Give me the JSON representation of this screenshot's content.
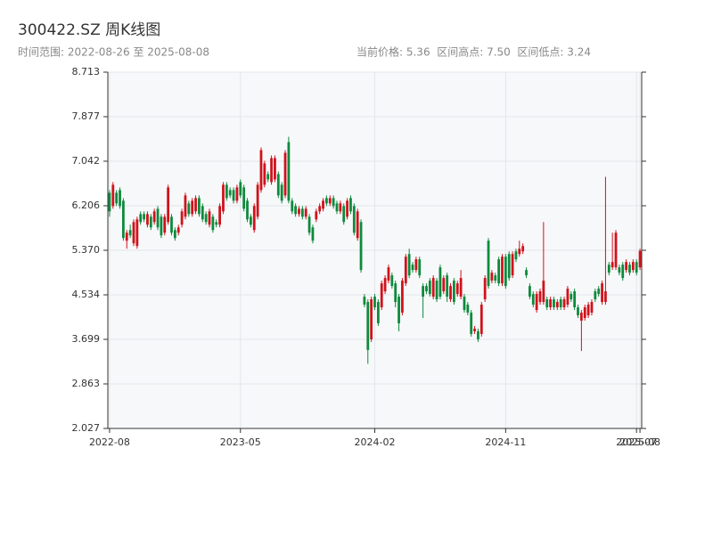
{
  "chart_data": {
    "type": "candlestick",
    "title": "300422.SZ 周K线图",
    "subtitle": [
      "时间范围: 2022-08-26 至 2025-08-08",
      "当前价格: 5.36  区间高点: 7.50  区间低点: 3.24"
    ],
    "up_color": "#d0121b",
    "down_color": "#0d8a3c",
    "grid": true,
    "ylim": [
      2.027,
      8.713
    ],
    "yticks": [
      2.027,
      2.863,
      3.699,
      4.534,
      {
        "value": 5.37,
        "label": "5.370"
      },
      6.206,
      7.042,
      7.877,
      8.713
    ],
    "categories": [
      "2022-08",
      null,
      null,
      null,
      null,
      null,
      null,
      null,
      null,
      null,
      null,
      null,
      null,
      null,
      null,
      null,
      null,
      null,
      null,
      null,
      null,
      null,
      null,
      null,
      null,
      null,
      null,
      null,
      null,
      null,
      null,
      null,
      null,
      null,
      null,
      null,
      null,
      null,
      "2023-05",
      null,
      null,
      null,
      null,
      null,
      null,
      null,
      null,
      null,
      null,
      null,
      null,
      null,
      null,
      null,
      null,
      null,
      null,
      null,
      null,
      null,
      null,
      null,
      null,
      null,
      null,
      null,
      null,
      null,
      null,
      null,
      null,
      null,
      null,
      null,
      null,
      null,
      null,
      "2024-02",
      null,
      null,
      null,
      null,
      null,
      null,
      null,
      null,
      null,
      null,
      null,
      null,
      null,
      null,
      null,
      null,
      null,
      null,
      null,
      null,
      null,
      null,
      null,
      null,
      null,
      null,
      null,
      null,
      null,
      null,
      null,
      null,
      null,
      null,
      null,
      null,
      null,
      "2024-11",
      null,
      null,
      null,
      null,
      null,
      null,
      null,
      null,
      null,
      null,
      null,
      null,
      null,
      null,
      null,
      null,
      null,
      null,
      null,
      null,
      null,
      null,
      null,
      null,
      null,
      null,
      null,
      null,
      null,
      null,
      null,
      null,
      null,
      null,
      null,
      null,
      null,
      "2025-07",
      "2025-08"
    ],
    "ohlc": [
      [
        6.45,
        6.5,
        6.0,
        6.1
      ],
      [
        6.2,
        6.65,
        6.15,
        6.6
      ],
      [
        6.45,
        6.5,
        6.2,
        6.25
      ],
      [
        6.5,
        6.55,
        6.15,
        6.2
      ],
      [
        6.3,
        6.35,
        5.55,
        5.6
      ],
      [
        5.55,
        5.75,
        5.4,
        5.7
      ],
      [
        5.75,
        5.85,
        5.6,
        5.65
      ],
      [
        5.5,
        5.95,
        5.45,
        5.9
      ],
      [
        5.45,
        6.0,
        5.4,
        5.95
      ],
      [
        6.05,
        6.1,
        5.85,
        5.9
      ],
      [
        6.05,
        6.1,
        5.9,
        5.95
      ],
      [
        5.85,
        6.1,
        5.8,
        6.05
      ],
      [
        6.0,
        6.05,
        5.75,
        5.8
      ],
      [
        5.9,
        6.15,
        5.85,
        6.1
      ],
      [
        6.15,
        6.2,
        5.75,
        5.8
      ],
      [
        6.0,
        6.05,
        5.6,
        5.65
      ],
      [
        5.7,
        6.05,
        5.65,
        6.0
      ],
      [
        5.9,
        6.6,
        5.85,
        6.55
      ],
      [
        6.0,
        6.05,
        5.65,
        5.7
      ],
      [
        5.75,
        5.8,
        5.55,
        5.6
      ],
      [
        5.7,
        5.85,
        5.65,
        5.8
      ],
      [
        5.85,
        6.15,
        5.8,
        6.1
      ],
      [
        6.0,
        6.45,
        5.95,
        6.4
      ],
      [
        6.25,
        6.3,
        6.0,
        6.05
      ],
      [
        6.05,
        6.35,
        6.0,
        6.3
      ],
      [
        6.1,
        6.4,
        6.05,
        6.35
      ],
      [
        6.35,
        6.4,
        6.0,
        6.05
      ],
      [
        6.2,
        6.25,
        5.9,
        5.95
      ],
      [
        6.05,
        6.1,
        5.85,
        5.9
      ],
      [
        5.85,
        6.15,
        5.8,
        6.1
      ],
      [
        6.0,
        6.05,
        5.7,
        5.75
      ],
      [
        5.9,
        5.95,
        5.8,
        5.85
      ],
      [
        5.85,
        6.25,
        5.8,
        6.2
      ],
      [
        6.1,
        6.65,
        6.05,
        6.6
      ],
      [
        6.6,
        6.65,
        6.3,
        6.35
      ],
      [
        6.5,
        6.55,
        6.35,
        6.4
      ],
      [
        6.5,
        6.55,
        6.25,
        6.3
      ],
      [
        6.3,
        6.6,
        6.25,
        6.55
      ],
      [
        6.65,
        6.7,
        6.35,
        6.4
      ],
      [
        6.55,
        6.6,
        6.1,
        6.15
      ],
      [
        6.3,
        6.35,
        5.9,
        5.95
      ],
      [
        6.0,
        6.05,
        5.8,
        5.85
      ],
      [
        5.75,
        6.25,
        5.7,
        6.2
      ],
      [
        6.0,
        6.65,
        5.95,
        6.6
      ],
      [
        6.5,
        7.3,
        6.45,
        7.25
      ],
      [
        6.6,
        7.05,
        6.55,
        7.0
      ],
      [
        6.8,
        6.85,
        6.65,
        6.7
      ],
      [
        6.65,
        7.15,
        6.6,
        7.1
      ],
      [
        6.7,
        7.15,
        6.65,
        7.1
      ],
      [
        6.8,
        6.85,
        6.35,
        6.4
      ],
      [
        6.6,
        6.65,
        6.25,
        6.3
      ],
      [
        6.4,
        7.25,
        6.35,
        7.2
      ],
      [
        7.4,
        7.5,
        6.25,
        6.3
      ],
      [
        6.3,
        6.35,
        6.05,
        6.1
      ],
      [
        6.2,
        6.25,
        6.0,
        6.05
      ],
      [
        6.05,
        6.2,
        6.0,
        6.15
      ],
      [
        6.15,
        6.2,
        5.95,
        6.0
      ],
      [
        6.0,
        6.2,
        5.95,
        6.15
      ],
      [
        6.0,
        6.05,
        5.65,
        5.7
      ],
      [
        5.8,
        5.85,
        5.5,
        5.55
      ],
      [
        5.95,
        6.15,
        5.9,
        6.1
      ],
      [
        6.1,
        6.25,
        6.05,
        6.2
      ],
      [
        6.15,
        6.35,
        6.1,
        6.3
      ],
      [
        6.35,
        6.4,
        6.2,
        6.25
      ],
      [
        6.25,
        6.4,
        6.2,
        6.35
      ],
      [
        6.35,
        6.4,
        6.15,
        6.2
      ],
      [
        6.25,
        6.3,
        6.05,
        6.1
      ],
      [
        6.1,
        6.3,
        6.05,
        6.25
      ],
      [
        6.2,
        6.25,
        5.85,
        5.9
      ],
      [
        6.0,
        6.35,
        5.95,
        6.3
      ],
      [
        6.35,
        6.4,
        6.05,
        6.1
      ],
      [
        6.2,
        6.25,
        5.65,
        5.7
      ],
      [
        5.6,
        6.15,
        5.55,
        6.1
      ],
      [
        5.9,
        5.95,
        4.95,
        5.0
      ],
      [
        4.5,
        4.55,
        4.3,
        4.35
      ],
      [
        4.4,
        4.45,
        3.24,
        3.5
      ],
      [
        3.7,
        4.5,
        3.65,
        4.45
      ],
      [
        4.5,
        4.55,
        4.25,
        4.3
      ],
      [
        4.4,
        4.45,
        3.95,
        4.0
      ],
      [
        4.3,
        4.8,
        4.25,
        4.75
      ],
      [
        4.6,
        4.9,
        4.55,
        4.85
      ],
      [
        4.8,
        5.1,
        4.75,
        5.05
      ],
      [
        4.9,
        4.95,
        4.65,
        4.7
      ],
      [
        4.75,
        4.8,
        4.3,
        4.4
      ],
      [
        4.5,
        4.55,
        3.85,
        4.0
      ],
      [
        4.2,
        4.85,
        4.15,
        4.8
      ],
      [
        4.75,
        5.3,
        4.7,
        5.25
      ],
      [
        5.3,
        5.4,
        4.85,
        4.9
      ],
      [
        5.1,
        5.15,
        4.95,
        5.0
      ],
      [
        5.0,
        5.25,
        4.95,
        5.2
      ],
      [
        5.2,
        5.25,
        4.85,
        4.9
      ],
      [
        4.7,
        4.75,
        4.1,
        4.5
      ],
      [
        4.7,
        4.75,
        4.55,
        4.6
      ],
      [
        4.8,
        4.85,
        4.5,
        4.55
      ],
      [
        4.5,
        4.9,
        4.45,
        4.85
      ],
      [
        4.8,
        4.85,
        4.4,
        4.45
      ],
      [
        5.05,
        5.1,
        4.45,
        4.5
      ],
      [
        4.6,
        4.9,
        4.55,
        4.85
      ],
      [
        4.9,
        4.95,
        4.4,
        4.5
      ],
      [
        4.45,
        4.75,
        4.4,
        4.7
      ],
      [
        4.8,
        4.85,
        4.35,
        4.4
      ],
      [
        4.55,
        4.8,
        4.5,
        4.75
      ],
      [
        4.5,
        5.0,
        4.45,
        4.85
      ],
      [
        4.5,
        4.55,
        4.2,
        4.25
      ],
      [
        4.35,
        4.4,
        4.15,
        4.2
      ],
      [
        4.2,
        4.25,
        3.75,
        3.8
      ],
      [
        3.85,
        3.95,
        3.8,
        3.9
      ],
      [
        3.85,
        3.9,
        3.65,
        3.7
      ],
      [
        3.8,
        4.4,
        3.75,
        4.35
      ],
      [
        4.45,
        4.9,
        4.4,
        4.85
      ],
      [
        5.55,
        5.6,
        4.65,
        4.7
      ],
      [
        4.8,
        5.0,
        4.75,
        4.95
      ],
      [
        4.9,
        4.95,
        4.75,
        4.8
      ],
      [
        5.2,
        5.25,
        4.7,
        4.75
      ],
      [
        4.75,
        5.3,
        4.7,
        5.25
      ],
      [
        5.25,
        5.3,
        4.65,
        4.7
      ],
      [
        5.3,
        5.35,
        4.8,
        4.85
      ],
      [
        4.9,
        5.35,
        4.85,
        5.3
      ],
      [
        5.35,
        5.4,
        5.15,
        5.2
      ],
      [
        5.3,
        5.55,
        5.25,
        5.4
      ],
      [
        5.35,
        5.5,
        5.3,
        5.45
      ],
      [
        5.0,
        5.05,
        4.85,
        4.9
      ],
      [
        4.7,
        4.75,
        4.45,
        4.5
      ],
      [
        4.55,
        4.6,
        4.3,
        4.35
      ],
      [
        4.25,
        4.6,
        4.2,
        4.55
      ],
      [
        4.4,
        4.65,
        4.35,
        4.6
      ],
      [
        4.4,
        5.9,
        4.35,
        4.8
      ],
      [
        4.45,
        4.5,
        4.25,
        4.3
      ],
      [
        4.3,
        4.5,
        4.25,
        4.45
      ],
      [
        4.45,
        4.5,
        4.25,
        4.3
      ],
      [
        4.3,
        4.45,
        4.25,
        4.4
      ],
      [
        4.45,
        4.5,
        4.25,
        4.3
      ],
      [
        4.3,
        4.5,
        4.25,
        4.45
      ],
      [
        4.35,
        4.7,
        4.3,
        4.65
      ],
      [
        4.55,
        4.6,
        4.4,
        4.45
      ],
      [
        4.6,
        4.65,
        4.25,
        4.3
      ],
      [
        4.3,
        4.35,
        4.1,
        4.15
      ],
      [
        4.05,
        4.25,
        3.48,
        4.2
      ],
      [
        4.1,
        4.35,
        4.05,
        4.3
      ],
      [
        4.15,
        4.4,
        4.1,
        4.35
      ],
      [
        4.2,
        4.45,
        4.15,
        4.4
      ],
      [
        4.6,
        4.65,
        4.4,
        4.45
      ],
      [
        4.65,
        4.7,
        4.5,
        4.55
      ],
      [
        4.4,
        4.8,
        4.35,
        4.75
      ],
      [
        4.4,
        6.75,
        4.35,
        4.6
      ],
      [
        5.1,
        5.15,
        4.9,
        4.95
      ],
      [
        5.05,
        5.7,
        5.0,
        5.15
      ],
      [
        5.05,
        5.75,
        5.0,
        5.7
      ],
      [
        5.05,
        5.1,
        4.9,
        4.95
      ],
      [
        5.1,
        5.15,
        4.8,
        4.85
      ],
      [
        5.0,
        5.2,
        4.95,
        5.15
      ],
      [
        5.1,
        5.15,
        4.9,
        4.95
      ],
      [
        5.0,
        5.2,
        4.95,
        5.15
      ],
      [
        5.15,
        5.2,
        4.9,
        4.95
      ],
      [
        5.05,
        5.4,
        5.0,
        5.36
      ]
    ]
  }
}
